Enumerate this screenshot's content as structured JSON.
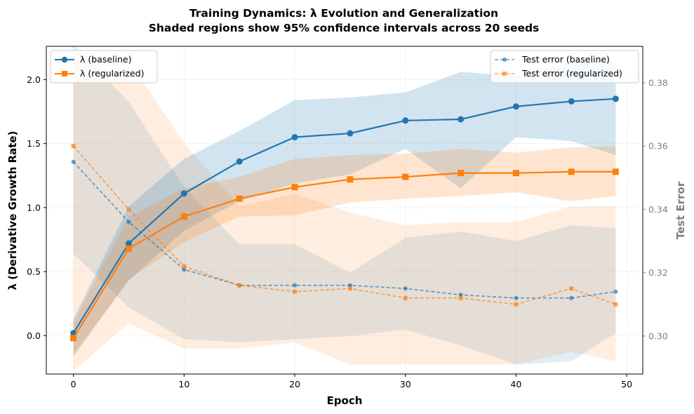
{
  "chart_data": {
    "type": "line",
    "title_line1": "Training Dynamics: λ Evolution and Generalization",
    "title_line2": "Shaded regions show 95% confidence intervals across 20 seeds",
    "xlabel": "Epoch",
    "ylabel_left": "λ (Derivative Growth Rate)",
    "ylabel_right": "Test Error",
    "xlim": [
      -2.45,
      51.45
    ],
    "ylim_left": [
      -0.3,
      2.26
    ],
    "ylim_right": [
      0.288,
      0.3915
    ],
    "x_ticks": [
      0,
      10,
      20,
      30,
      40,
      50
    ],
    "y_ticks_left": [
      0.0,
      0.5,
      1.0,
      1.5,
      2.0
    ],
    "y_tick_labels_left": [
      "0.0",
      "0.5",
      "1.0",
      "1.5",
      "2.0"
    ],
    "y_ticks_right": [
      0.3,
      0.32,
      0.34,
      0.36,
      0.38
    ],
    "y_tick_labels_right": [
      "0.30",
      "0.32",
      "0.34",
      "0.36",
      "0.38"
    ],
    "grid": true,
    "x": [
      0,
      5,
      10,
      15,
      20,
      25,
      30,
      35,
      40,
      45,
      49
    ],
    "colors": {
      "baseline": "#1f77b4",
      "regularized": "#ff7f0e"
    },
    "series": [
      {
        "name": "λ (baseline)",
        "axis": "left",
        "style": "solid",
        "marker": "circle",
        "values": [
          0.02,
          0.72,
          1.11,
          1.36,
          1.55,
          1.58,
          1.68,
          1.69,
          1.79,
          1.83,
          1.85
        ],
        "lower": [
          -0.15,
          0.43,
          0.82,
          1.05,
          1.19,
          1.26,
          1.46,
          1.15,
          1.55,
          1.52,
          1.41
        ],
        "upper": [
          0.13,
          1.01,
          1.38,
          1.6,
          1.84,
          1.86,
          1.9,
          2.06,
          2.03,
          2.14,
          2.14
        ]
      },
      {
        "name": "λ (regularized)",
        "axis": "left",
        "style": "solid",
        "marker": "square",
        "values": [
          -0.02,
          0.68,
          0.93,
          1.07,
          1.16,
          1.22,
          1.24,
          1.27,
          1.27,
          1.28,
          1.28
        ],
        "lower": [
          -0.17,
          0.44,
          0.73,
          0.93,
          0.94,
          1.04,
          1.07,
          1.09,
          1.12,
          1.05,
          1.09
        ],
        "upper": [
          0.1,
          0.93,
          1.15,
          1.24,
          1.38,
          1.41,
          1.42,
          1.46,
          1.43,
          1.47,
          1.48
        ]
      },
      {
        "name": "Test error (baseline)",
        "axis": "right",
        "style": "dashed",
        "marker": "circle",
        "values": [
          0.355,
          0.336,
          0.321,
          0.316,
          0.316,
          0.316,
          0.315,
          0.313,
          0.312,
          0.312,
          0.314
        ],
        "lower": [
          0.326,
          0.309,
          0.299,
          0.298,
          0.299,
          0.3,
          0.302,
          0.297,
          0.291,
          0.292,
          0.301
        ],
        "upper": [
          0.392,
          0.374,
          0.347,
          0.329,
          0.329,
          0.32,
          0.331,
          0.333,
          0.33,
          0.335,
          0.334
        ]
      },
      {
        "name": "Test error (regularized)",
        "axis": "right",
        "style": "dashed",
        "marker": "square",
        "values": [
          0.36,
          0.34,
          0.322,
          0.316,
          0.314,
          0.315,
          0.312,
          0.312,
          0.31,
          0.315,
          0.31
        ],
        "lower": [
          0.289,
          0.304,
          0.296,
          0.296,
          0.298,
          0.291,
          0.291,
          0.291,
          0.291,
          0.295,
          0.292
        ],
        "upper": [
          0.388,
          0.387,
          0.361,
          0.341,
          0.345,
          0.339,
          0.335,
          0.336,
          0.336,
          0.341,
          0.341
        ]
      }
    ],
    "legend_left": "top-left",
    "legend_right": "top-right"
  }
}
